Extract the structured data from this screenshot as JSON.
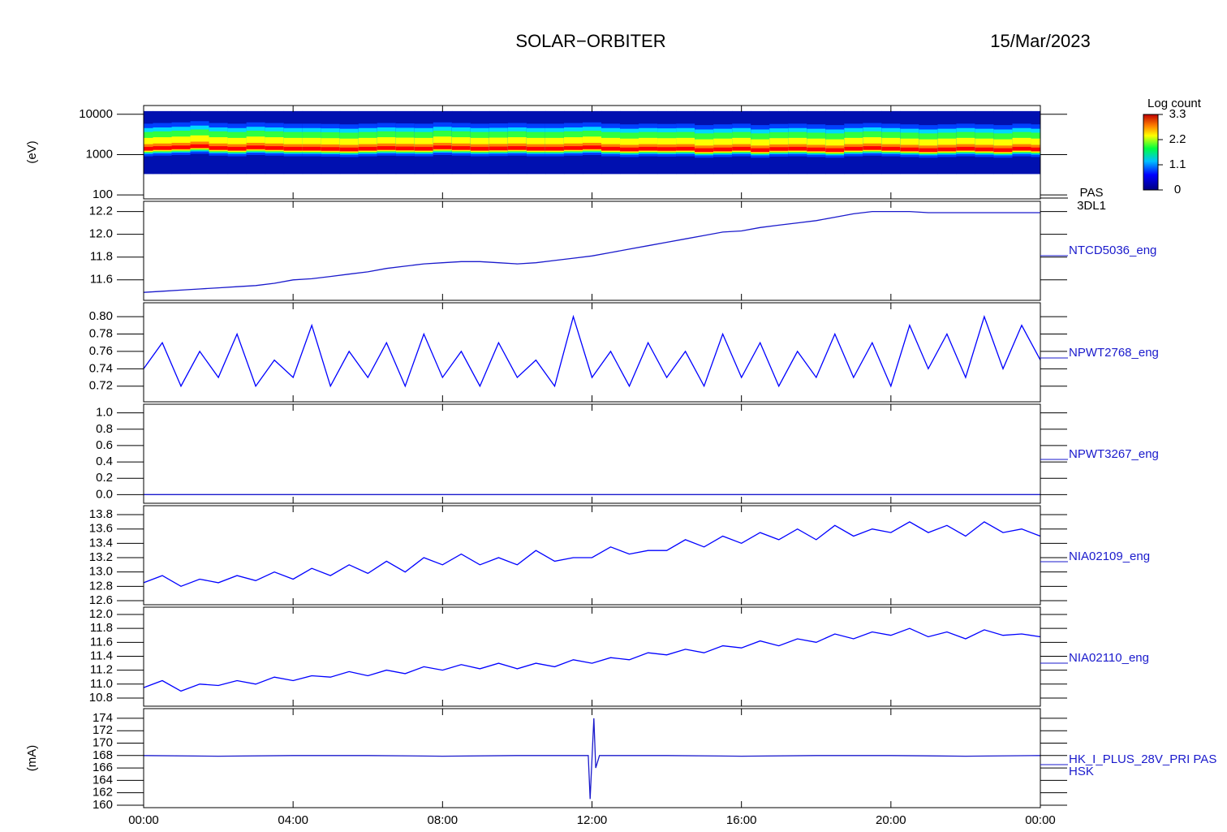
{
  "header": {
    "title": "SOLAR−ORBITER",
    "date": "15/Mar/2023"
  },
  "chart_data": {
    "type": "stacked-panels",
    "xlim": [
      0,
      24
    ],
    "xticks": [
      {
        "value": 0,
        "label": "00:00"
      },
      {
        "value": 4,
        "label": "04:00"
      },
      {
        "value": 8,
        "label": "08:00"
      },
      {
        "value": 12,
        "label": "12:00"
      },
      {
        "value": 16,
        "label": "16:00"
      },
      {
        "value": 20,
        "label": "20:00"
      },
      {
        "value": 24,
        "label": "00:00"
      }
    ],
    "x": [
      0,
      0.5,
      1,
      1.5,
      2,
      2.5,
      3,
      3.5,
      4,
      4.5,
      5,
      5.5,
      6,
      6.5,
      7,
      7.5,
      8,
      8.5,
      9,
      9.5,
      10,
      10.5,
      11,
      11.5,
      12,
      12.5,
      13,
      13.5,
      14,
      14.5,
      15,
      15.5,
      16,
      16.5,
      17,
      17.5,
      18,
      18.5,
      19,
      19.5,
      20,
      20.5,
      21,
      21.5,
      22,
      22.5,
      23,
      23.5,
      24
    ],
    "panels": [
      {
        "type": "spectrogram",
        "ylabel": "(eV)",
        "labels": [
          "PAS",
          "3DL1"
        ],
        "log_scale": true,
        "ylim": [
          80,
          16500
        ],
        "yticks": [
          100,
          1000,
          10000
        ],
        "energy_range": [
          330,
          12000
        ],
        "colorbar": {
          "title": "Log count",
          "lim": [
            0,
            3.3
          ],
          "ticks": [
            3.3,
            2.2,
            1.1,
            0.0
          ]
        },
        "peak_energy": [
          1300,
          1350,
          1400,
          1500,
          1350,
          1300,
          1400,
          1350,
          1300,
          1300,
          1280,
          1250,
          1300,
          1350,
          1320,
          1300,
          1400,
          1350,
          1300,
          1320,
          1350,
          1300,
          1300,
          1350,
          1400,
          1300,
          1250,
          1300,
          1280,
          1300,
          1200,
          1250,
          1300,
          1200,
          1280,
          1300,
          1250,
          1200,
          1300,
          1350,
          1300,
          1250,
          1200,
          1250,
          1300,
          1250,
          1200,
          1300,
          1250
        ]
      },
      {
        "type": "line",
        "labels": [
          "NTCD5036_eng"
        ],
        "color": "#1a1acc",
        "ylim": [
          11.42,
          12.29
        ],
        "yticks": [
          11.6,
          11.8,
          {
            "value": 12,
            "label": "12.0"
          },
          12.2
        ],
        "values": [
          11.49,
          11.5,
          11.51,
          11.52,
          11.53,
          11.54,
          11.55,
          11.57,
          11.6,
          11.61,
          11.63,
          11.65,
          11.67,
          11.7,
          11.72,
          11.74,
          11.75,
          11.76,
          11.76,
          11.75,
          11.74,
          11.75,
          11.77,
          11.79,
          11.81,
          11.84,
          11.87,
          11.9,
          11.93,
          11.96,
          11.99,
          12.02,
          12.03,
          12.06,
          12.08,
          12.1,
          12.12,
          12.15,
          12.18,
          12.2,
          12.2,
          12.2,
          12.19,
          12.19,
          12.19,
          12.19,
          12.19,
          12.19,
          12.19
        ]
      },
      {
        "type": "line",
        "labels": [
          "NPWT2768_eng"
        ],
        "color": "#0000ff",
        "ylim": [
          0.702,
          0.816
        ],
        "yticks": [
          0.72,
          0.74,
          0.76,
          0.78,
          {
            "value": 0.8,
            "label": "0.80"
          }
        ],
        "values": [
          0.74,
          0.77,
          0.72,
          0.76,
          0.73,
          0.78,
          0.72,
          0.75,
          0.73,
          0.79,
          0.72,
          0.76,
          0.73,
          0.77,
          0.72,
          0.78,
          0.73,
          0.76,
          0.72,
          0.77,
          0.73,
          0.75,
          0.72,
          0.8,
          0.73,
          0.76,
          0.72,
          0.77,
          0.73,
          0.76,
          0.72,
          0.78,
          0.73,
          0.77,
          0.72,
          0.76,
          0.73,
          0.78,
          0.73,
          0.77,
          0.72,
          0.79,
          0.74,
          0.78,
          0.73,
          0.8,
          0.74,
          0.79,
          0.75
        ]
      },
      {
        "type": "line",
        "labels": [
          "NPWT3267_eng"
        ],
        "color": "#1a1acc",
        "ylim": [
          -0.106,
          1.106
        ],
        "yticks": [
          {
            "value": 0,
            "label": "0.0"
          },
          0.2,
          0.4,
          0.6,
          0.8,
          {
            "value": 1,
            "label": "1.0"
          }
        ],
        "values": [
          0,
          0,
          0,
          0,
          0,
          0,
          0,
          0,
          0,
          0,
          0,
          0,
          0,
          0,
          0,
          0,
          0,
          0,
          0,
          0,
          0,
          0,
          0,
          0,
          0,
          0,
          0,
          0,
          0,
          0,
          0,
          0,
          0,
          0,
          0,
          0,
          0,
          0,
          0,
          0,
          0,
          0,
          0,
          0,
          0,
          0,
          0,
          0,
          0
        ]
      },
      {
        "type": "line",
        "labels": [
          "NIA02109_eng"
        ],
        "color": "#0000ff",
        "ylim": [
          12.543,
          13.925
        ],
        "yticks": [
          12.6,
          12.8,
          {
            "value": 13,
            "label": "13.0"
          },
          13.2,
          13.4,
          13.6,
          13.8
        ],
        "values": [
          12.85,
          12.95,
          12.8,
          12.9,
          12.85,
          12.95,
          12.88,
          13.0,
          12.9,
          13.05,
          12.95,
          13.1,
          12.98,
          13.15,
          13.0,
          13.2,
          13.1,
          13.25,
          13.1,
          13.2,
          13.1,
          13.3,
          13.15,
          13.2,
          13.2,
          13.35,
          13.25,
          13.3,
          13.3,
          13.45,
          13.35,
          13.5,
          13.4,
          13.55,
          13.45,
          13.6,
          13.45,
          13.65,
          13.5,
          13.6,
          13.55,
          13.7,
          13.55,
          13.65,
          13.5,
          13.7,
          13.55,
          13.6,
          13.5
        ]
      },
      {
        "type": "line",
        "labels": [
          "NIA02110_eng"
        ],
        "color": "#0000ff",
        "ylim": [
          10.683,
          12.105
        ],
        "yticks": [
          10.8,
          {
            "value": 11,
            "label": "11.0"
          },
          11.2,
          11.4,
          11.6,
          11.8,
          {
            "value": 12,
            "label": "12.0"
          }
        ],
        "values": [
          10.95,
          11.05,
          10.9,
          11.0,
          10.98,
          11.05,
          11.0,
          11.1,
          11.05,
          11.12,
          11.1,
          11.18,
          11.12,
          11.2,
          11.15,
          11.25,
          11.2,
          11.28,
          11.22,
          11.3,
          11.22,
          11.3,
          11.25,
          11.35,
          11.3,
          11.38,
          11.35,
          11.45,
          11.42,
          11.5,
          11.45,
          11.55,
          11.52,
          11.62,
          11.55,
          11.65,
          11.6,
          11.72,
          11.65,
          11.75,
          11.7,
          11.8,
          11.68,
          11.75,
          11.65,
          11.78,
          11.7,
          11.72,
          11.68
        ]
      },
      {
        "type": "line",
        "ylabel": "(mA)",
        "labels": [
          "HK_I_PLUS_28V_PRI PAS",
          "HSK"
        ],
        "color": "#1a1acc",
        "ylim": [
          159.6,
          175.56
        ],
        "yticks": [
          160,
          162,
          164,
          166,
          168,
          170,
          172,
          174
        ],
        "x": [
          0,
          2,
          4,
          6,
          8,
          10,
          11.9,
          11.95,
          12.05,
          12.1,
          12.2,
          14,
          16,
          18,
          20,
          22,
          24
        ],
        "values": [
          168,
          167.9,
          168,
          168,
          167.9,
          168,
          168,
          161,
          174,
          166,
          168,
          168,
          167.9,
          168,
          168,
          167.9,
          168
        ]
      }
    ]
  }
}
